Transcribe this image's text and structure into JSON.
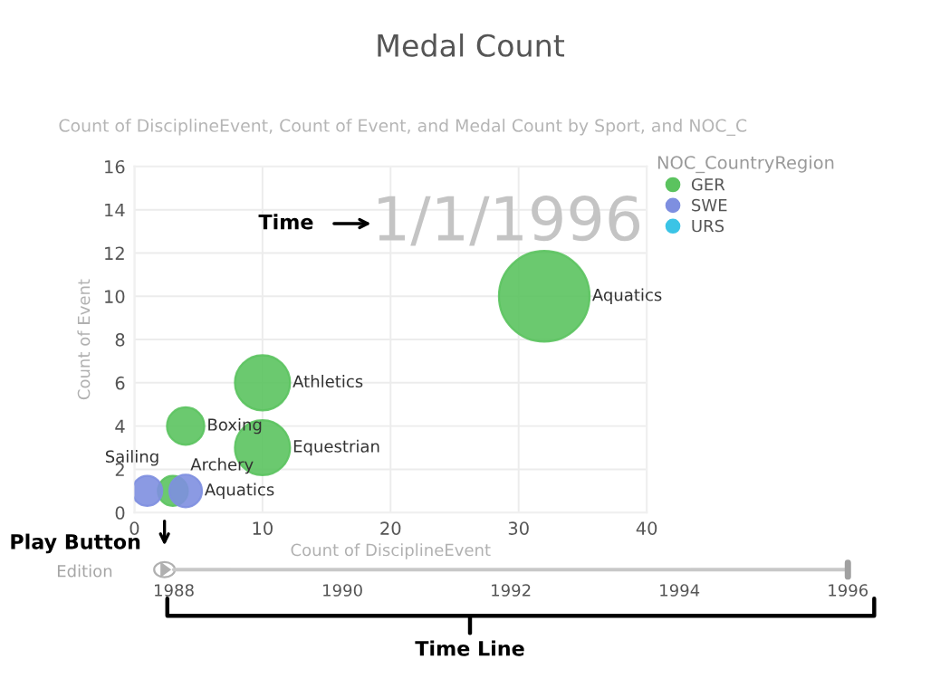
{
  "chart_data": {
    "type": "bubble",
    "title": "Medal Count",
    "subtitle": "Count of DisciplineEvent, Count of Event, and Medal Count by Sport, and NOC_C",
    "xlabel": "Count of DisciplineEvent",
    "ylabel": "Count of Event",
    "legend_title": "NOC_CountryRegion",
    "legend": "top right",
    "grid": true,
    "xlim": [
      0,
      40
    ],
    "xticks": [
      0,
      10,
      20,
      30,
      40
    ],
    "ylim": [
      0,
      16
    ],
    "yticks": [
      0,
      2,
      4,
      6,
      8,
      10,
      12,
      14,
      16
    ],
    "series": [
      {
        "name": "GER",
        "color": "#5bc35f",
        "x": [
          32,
          10,
          4,
          10,
          3
        ],
        "values": [
          10,
          6,
          4,
          3,
          1
        ],
        "sizes": [
          1,
          0.37,
          0.17,
          0.37,
          0.11
        ],
        "value_labels": [
          "Aquatics",
          "Athletics",
          "Boxing",
          "Equestrian",
          "Archery"
        ]
      },
      {
        "name": "SWE",
        "color": "#7e8fe0",
        "x": [
          1,
          4
        ],
        "values": [
          1,
          1
        ],
        "sizes": [
          0.11,
          0.13
        ],
        "value_labels": [
          "Sailing",
          "Aquatics"
        ]
      },
      {
        "name": "URS",
        "color": "#3bc4e6"
      }
    ],
    "annotations": [
      "1/1/1996",
      "Time",
      "Play Button",
      "Time Line",
      "Edition",
      "1988",
      "1990",
      "1992",
      "1994",
      "1996"
    ]
  }
}
